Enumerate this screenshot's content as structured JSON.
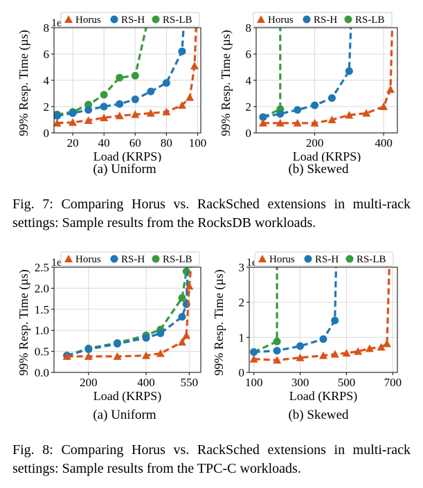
{
  "figures": [
    {
      "subcaptions": [
        "(a) Uniform",
        "(b) Skewed"
      ],
      "caption": "Fig. 7: Comparing Horus vs. RackSched extensions in multi-rack settings: Sample results from the RocksDB workloads."
    },
    {
      "subcaptions": [
        "(a) Uniform",
        "(b) Skewed"
      ],
      "caption": "Fig. 8: Comparing Horus vs. RackSched extensions in multi-rack settings: Sample results from the TPC-C workloads."
    }
  ],
  "colors": {
    "Horus": "#d95319",
    "RS-H": "#1f77b4",
    "RS-LB": "#3a9a3a"
  },
  "chart_data": [
    {
      "type": "line",
      "xlabel": "Load (KRPS)",
      "ylabel": "99% Resp. Time (µs)",
      "yscale_label": "1e3",
      "xlim": [
        8,
        102
      ],
      "ylim": [
        0,
        8
      ],
      "xticks": [
        20,
        40,
        60,
        80,
        100
      ],
      "yticks": [
        0,
        2,
        4,
        6,
        8
      ],
      "legend": "top",
      "series": [
        {
          "name": "Horus",
          "marker": "triangle",
          "x": [
            10,
            20,
            30,
            40,
            50,
            60,
            70,
            80,
            90,
            95,
            98,
            99
          ],
          "y": [
            0.75,
            0.8,
            0.95,
            1.15,
            1.3,
            1.4,
            1.5,
            1.6,
            2.1,
            2.7,
            5.1,
            8.0
          ]
        },
        {
          "name": "RS-H",
          "marker": "circle",
          "x": [
            10,
            20,
            30,
            40,
            50,
            60,
            70,
            80,
            90,
            91
          ],
          "y": [
            1.3,
            1.5,
            1.75,
            2.0,
            2.2,
            2.55,
            3.15,
            3.8,
            6.2,
            8.0
          ]
        },
        {
          "name": "RS-LB",
          "marker": "circle",
          "x": [
            10,
            20,
            30,
            40,
            50,
            60,
            67
          ],
          "y": [
            1.4,
            1.6,
            2.15,
            2.9,
            4.2,
            4.35,
            8.0
          ]
        }
      ]
    },
    {
      "type": "line",
      "xlabel": "Load (KRPS)",
      "ylabel": "99% Resp. Time (µs)",
      "yscale_label": "1e3",
      "xlim": [
        30,
        440
      ],
      "ylim": [
        0,
        8
      ],
      "xticks": [
        200,
        400
      ],
      "yticks": [
        0,
        2,
        4,
        6,
        8
      ],
      "legend": "top",
      "series": [
        {
          "name": "Horus",
          "marker": "triangle",
          "x": [
            50,
            100,
            150,
            200,
            250,
            300,
            350,
            400,
            420,
            425
          ],
          "y": [
            0.75,
            0.75,
            0.75,
            0.75,
            1.0,
            1.35,
            1.5,
            2.0,
            3.3,
            8.0
          ]
        },
        {
          "name": "RS-H",
          "marker": "circle",
          "x": [
            50,
            100,
            150,
            200,
            250,
            300,
            305
          ],
          "y": [
            1.2,
            1.45,
            1.75,
            2.1,
            2.65,
            4.7,
            8.0
          ]
        },
        {
          "name": "RS-LB",
          "marker": "circle",
          "x": [
            50,
            100,
            100
          ],
          "y": [
            1.2,
            1.8,
            8.0
          ]
        }
      ]
    },
    {
      "type": "line",
      "xlabel": "Load (KRPS)",
      "ylabel": "99% Resp. Time (µs)",
      "yscale_label": "1e3",
      "xlim": [
        80,
        590
      ],
      "ylim": [
        0,
        2.5
      ],
      "xticks": [
        200,
        400,
        550
      ],
      "yticks": [
        0.0,
        0.5,
        1.0,
        1.5,
        2.0,
        2.5
      ],
      "legend": "top",
      "series": [
        {
          "name": "Horus",
          "marker": "triangle",
          "x": [
            125,
            200,
            300,
            400,
            450,
            525,
            540,
            550,
            556
          ],
          "y": [
            0.38,
            0.38,
            0.38,
            0.4,
            0.45,
            0.72,
            0.88,
            2.05,
            2.5
          ]
        },
        {
          "name": "RS-H",
          "marker": "circle",
          "x": [
            125,
            200,
            300,
            400,
            450,
            525,
            540,
            545
          ],
          "y": [
            0.4,
            0.55,
            0.68,
            0.82,
            0.93,
            1.32,
            1.62,
            2.5
          ]
        },
        {
          "name": "RS-LB",
          "marker": "circle",
          "x": [
            125,
            200,
            300,
            400,
            450,
            525,
            540,
            542
          ],
          "y": [
            0.4,
            0.57,
            0.7,
            0.88,
            1.02,
            1.77,
            2.4,
            2.5
          ]
        }
      ]
    },
    {
      "type": "line",
      "xlabel": "Load (KRPS)",
      "ylabel": "99% Resp. Time (µs)",
      "yscale_label": "1e3",
      "xlim": [
        80,
        720
      ],
      "ylim": [
        0,
        3
      ],
      "xticks": [
        100,
        300,
        500,
        700
      ],
      "yticks": [
        0,
        1,
        2,
        3
      ],
      "legend": "top",
      "series": [
        {
          "name": "Horus",
          "marker": "triangle",
          "x": [
            100,
            200,
            300,
            400,
            450,
            500,
            550,
            600,
            650,
            675,
            685
          ],
          "y": [
            0.38,
            0.35,
            0.42,
            0.48,
            0.52,
            0.55,
            0.6,
            0.68,
            0.72,
            0.82,
            3.0
          ]
        },
        {
          "name": "RS-H",
          "marker": "circle",
          "x": [
            100,
            200,
            300,
            400,
            450,
            455
          ],
          "y": [
            0.58,
            0.62,
            0.75,
            0.95,
            1.48,
            3.0
          ]
        },
        {
          "name": "RS-LB",
          "marker": "circle",
          "x": [
            100,
            200,
            200
          ],
          "y": [
            0.58,
            0.88,
            3.0
          ]
        }
      ]
    }
  ]
}
